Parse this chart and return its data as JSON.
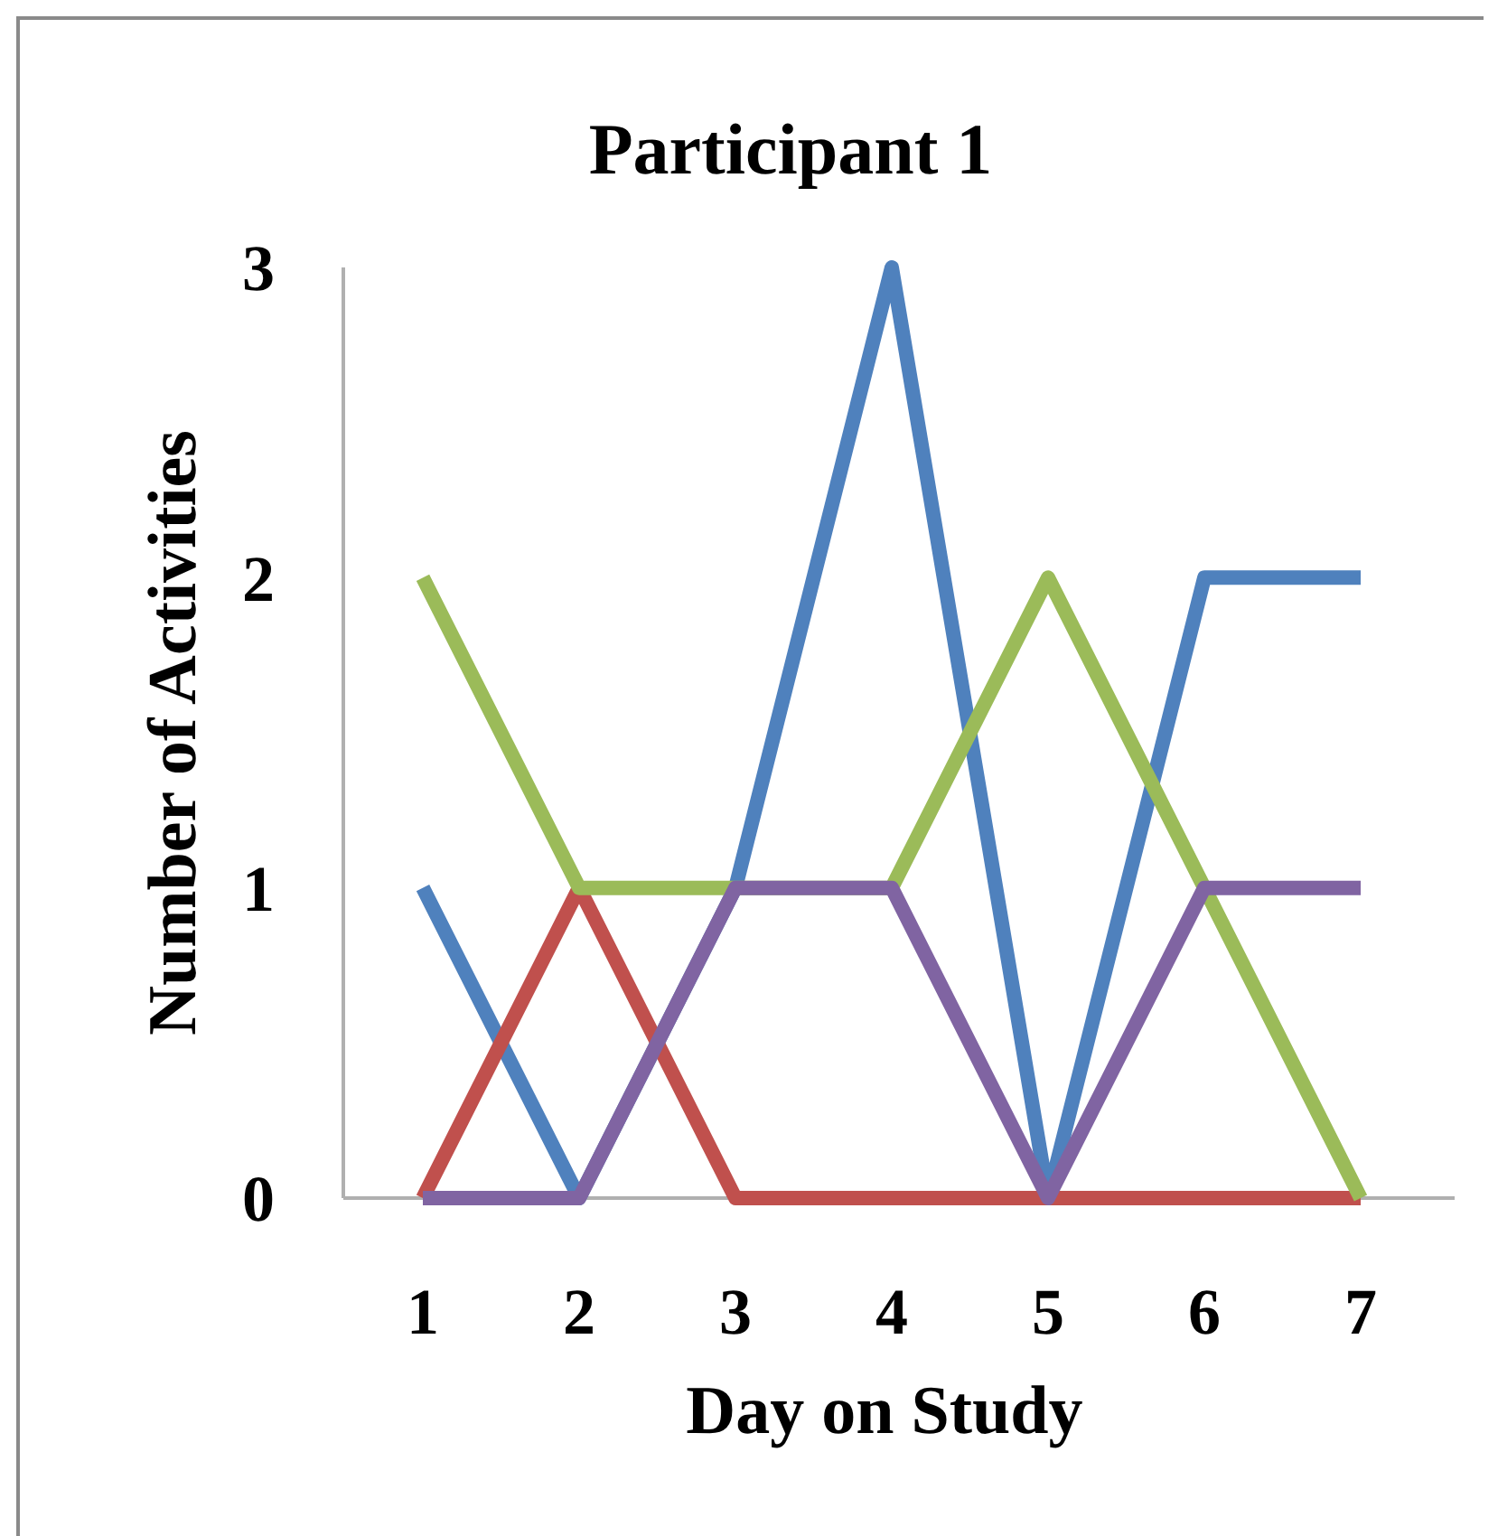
{
  "chart_data": {
    "type": "line",
    "title": "Participant 1",
    "xlabel": "Day on Study",
    "ylabel": "Number of Activities",
    "categories": [
      "1",
      "2",
      "3",
      "4",
      "5",
      "6",
      "7"
    ],
    "series": [
      {
        "color": "#4f81bd",
        "values": [
          1,
          0,
          1,
          3,
          0,
          2,
          2
        ]
      },
      {
        "color": "#c0504d",
        "values": [
          0,
          1,
          0,
          0,
          0,
          0,
          0
        ]
      },
      {
        "color": "#9bbb59",
        "values": [
          2,
          1,
          1,
          1,
          2,
          1,
          0
        ]
      },
      {
        "color": "#8064a2",
        "values": [
          0,
          0,
          1,
          1,
          0,
          1,
          1
        ]
      }
    ],
    "ylim": [
      0,
      3
    ],
    "yticks": [
      0,
      1,
      2,
      3
    ],
    "marker": "none",
    "line_style": "solid"
  }
}
